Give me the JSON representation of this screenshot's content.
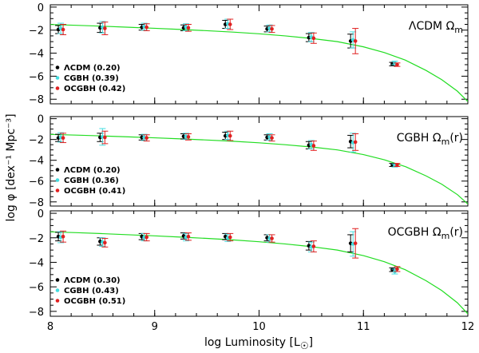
{
  "chart_data": {
    "type": "scatter",
    "xlabel_main": "log Luminosity [L",
    "xlabel_sun": "☉",
    "xlabel_close": "]",
    "ylabel": "log φ [dex⁻¹ Mpc⁻³]",
    "xlim": [
      8,
      12
    ],
    "ylim": [
      -8.4,
      0.2
    ],
    "xticks": [
      8,
      9,
      10,
      11,
      12
    ],
    "yticks": [
      0,
      -2,
      -4,
      -6,
      -8
    ],
    "colors": {
      "LCDM": "#000000",
      "CGBH": "#44dde0",
      "OCGBH": "#e02020",
      "fit": "#22dd22"
    },
    "x_points": [
      8.1,
      8.5,
      8.9,
      9.3,
      9.7,
      10.1,
      10.5,
      10.9,
      11.3
    ],
    "fit_curve": {
      "x": [
        7.95,
        8.25,
        8.5,
        8.75,
        9.0,
        9.25,
        9.5,
        9.75,
        10.0,
        10.25,
        10.5,
        10.75,
        11.0,
        11.2,
        11.4,
        11.6,
        11.75,
        11.9,
        12.0
      ],
      "y": [
        -1.5,
        -1.58,
        -1.66,
        -1.75,
        -1.84,
        -1.94,
        -2.05,
        -2.17,
        -2.32,
        -2.5,
        -2.72,
        -3.0,
        -3.45,
        -3.95,
        -4.6,
        -5.5,
        -6.3,
        -7.3,
        -8.2
      ]
    },
    "panels": [
      {
        "title_main": "ΛCDM  Ω",
        "title_sub": "m",
        "title_suffix": "",
        "legend": [
          "ΛCDM (0.20)",
          "CGBH (0.39)",
          "OCGBH (0.42)"
        ],
        "series": [
          {
            "name": "ΛCDM",
            "y": [
              -1.95,
              -1.8,
              -1.75,
              -1.8,
              -1.5,
              -1.9,
              -2.65,
              -2.95,
              -4.95
            ],
            "err": [
              0.35,
              0.4,
              0.25,
              0.25,
              0.35,
              0.25,
              0.35,
              0.6,
              0.15
            ]
          },
          {
            "name": "CGBH",
            "y": [
              -1.85,
              -1.75,
              -1.7,
              -1.75,
              -1.45,
              -1.85,
              -2.6,
              -2.85,
              -4.85
            ],
            "err": [
              0.45,
              0.5,
              0.3,
              0.3,
              0.4,
              0.3,
              0.4,
              0.7,
              0.15
            ]
          },
          {
            "name": "OCGBH",
            "y": [
              -1.95,
              -1.85,
              -1.75,
              -1.8,
              -1.5,
              -1.9,
              -2.7,
              -2.95,
              -5.0
            ],
            "err": [
              0.45,
              0.55,
              0.3,
              0.3,
              0.45,
              0.3,
              0.45,
              1.1,
              0.15
            ]
          }
        ]
      },
      {
        "title_main": "CGBH  Ω",
        "title_sub": "m",
        "title_suffix": "(r)",
        "legend": [
          "ΛCDM (0.20)",
          "CGBH (0.36)",
          "OCGBH (0.41)"
        ],
        "series": [
          {
            "name": "ΛCDM",
            "y": [
              -1.85,
              -1.8,
              -1.8,
              -1.7,
              -1.65,
              -1.8,
              -2.55,
              -2.2,
              -4.45
            ],
            "err": [
              0.35,
              0.4,
              0.25,
              0.25,
              0.35,
              0.25,
              0.35,
              0.6,
              0.15
            ]
          },
          {
            "name": "CGBH",
            "y": [
              -1.8,
              -1.75,
              -1.8,
              -1.7,
              -1.6,
              -1.75,
              -2.5,
              -2.3,
              -4.5
            ],
            "err": [
              0.45,
              0.8,
              0.3,
              0.3,
              0.4,
              0.3,
              0.4,
              0.9,
              0.15
            ]
          },
          {
            "name": "OCGBH",
            "y": [
              -1.85,
              -1.8,
              -1.85,
              -1.75,
              -1.65,
              -1.85,
              -2.6,
              -2.25,
              -4.45
            ],
            "err": [
              0.45,
              0.6,
              0.3,
              0.3,
              0.45,
              0.3,
              0.45,
              0.8,
              0.15
            ]
          }
        ]
      },
      {
        "title_main": "OCGBH  Ω",
        "title_sub": "m",
        "title_suffix": "(r)",
        "legend": [
          "ΛCDM (0.30)",
          "CGBH (0.43)",
          "OCGBH (0.51)"
        ],
        "series": [
          {
            "name": "ΛCDM",
            "y": [
              -1.9,
              -2.3,
              -1.9,
              -1.85,
              -1.9,
              -2.0,
              -2.65,
              -2.45,
              -4.6
            ],
            "err": [
              0.35,
              0.3,
              0.25,
              0.25,
              0.25,
              0.25,
              0.35,
              0.7,
              0.15
            ]
          },
          {
            "name": "CGBH",
            "y": [
              -1.95,
              -2.35,
              -1.95,
              -1.95,
              -2.0,
              -2.05,
              -2.75,
              -2.5,
              -4.75
            ],
            "err": [
              0.45,
              0.35,
              0.3,
              0.3,
              0.3,
              0.3,
              0.4,
              1.0,
              0.2
            ]
          },
          {
            "name": "OCGBH",
            "y": [
              -1.9,
              -2.4,
              -1.95,
              -1.9,
              -1.95,
              -2.05,
              -2.7,
              -2.45,
              -4.55
            ],
            "err": [
              0.45,
              0.35,
              0.3,
              0.3,
              0.3,
              0.3,
              0.45,
              1.2,
              0.2
            ]
          }
        ]
      }
    ]
  }
}
